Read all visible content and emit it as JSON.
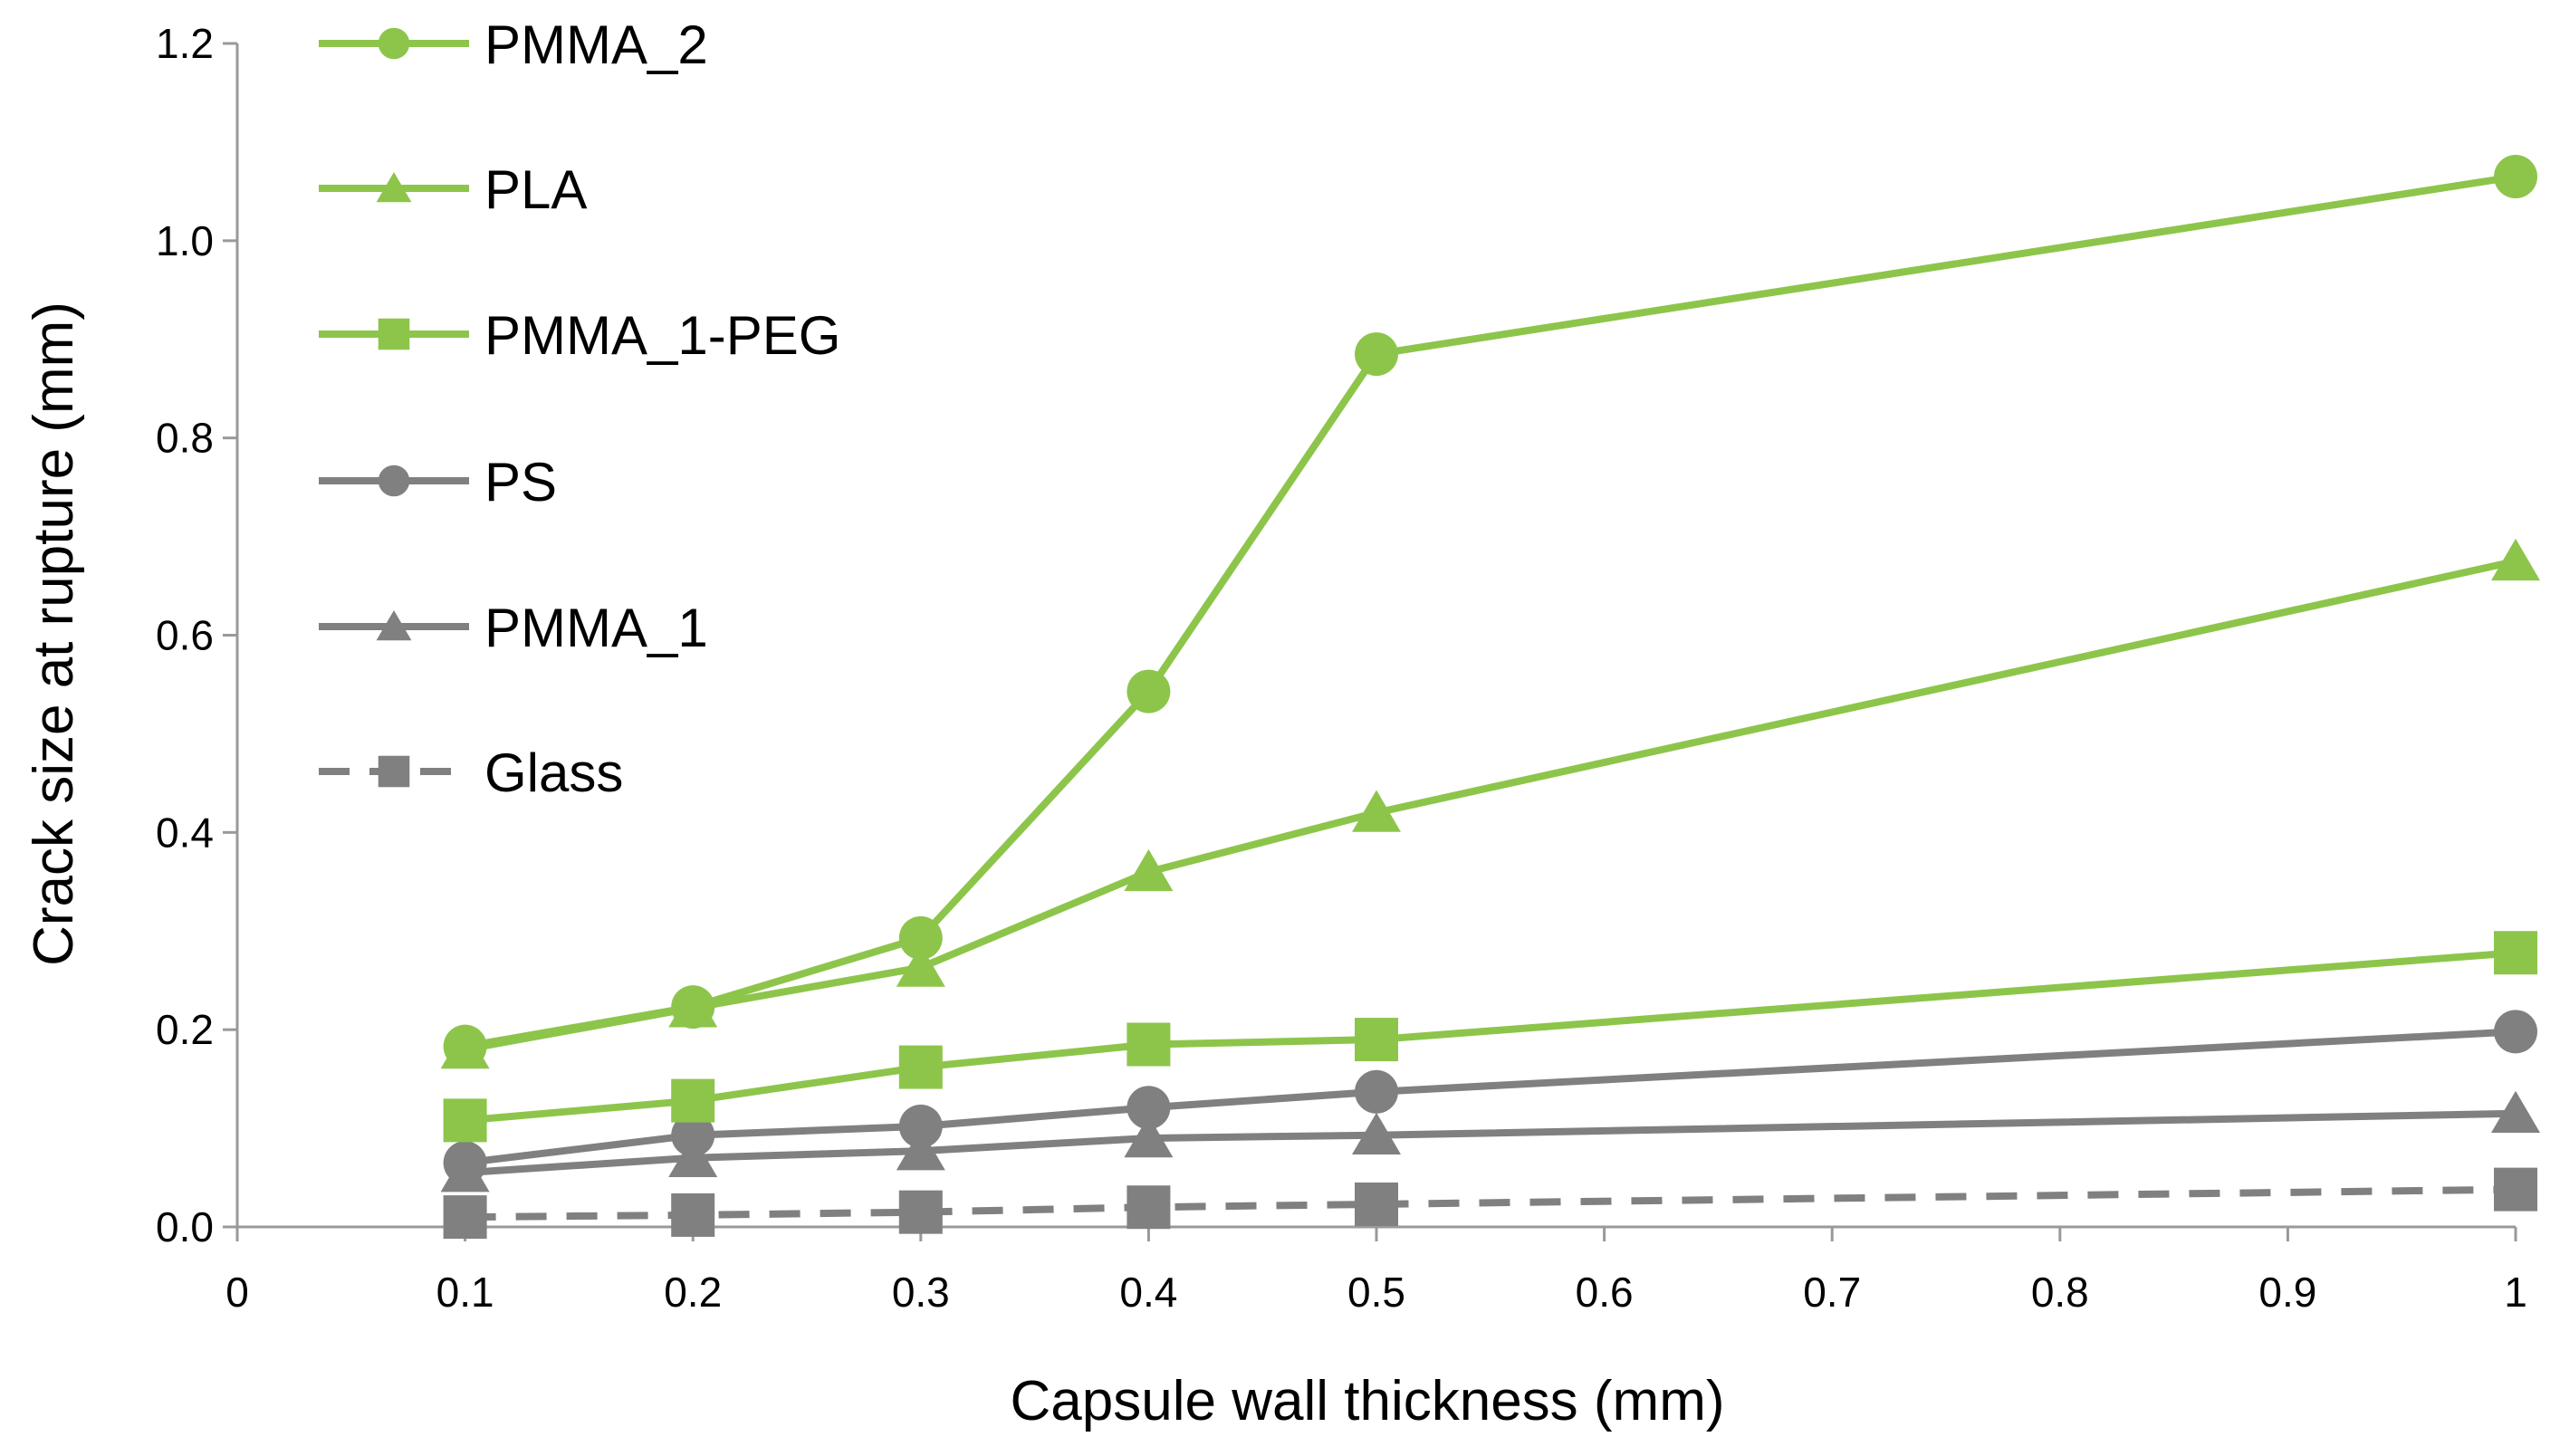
{
  "chart_data": {
    "type": "line",
    "title": "",
    "xlabel": "Capsule wall thickness (mm)",
    "ylabel": "Crack size at rupture (mm)",
    "xlim": [
      0,
      1
    ],
    "ylim": [
      0,
      1.2
    ],
    "xticks": [
      0,
      0.1,
      0.2,
      0.3,
      0.4,
      0.5,
      0.6,
      0.7,
      0.8,
      0.9,
      1
    ],
    "xtick_labels": [
      "0",
      "0.1",
      "0.2",
      "0.3",
      "0.4",
      "0.5",
      "0.6",
      "0.7",
      "0.8",
      "0.9",
      "1"
    ],
    "yticks": [
      0,
      0.2,
      0.4,
      0.6,
      0.8,
      1.0,
      1.2
    ],
    "ytick_labels": [
      "0.0",
      "0.2",
      "0.4",
      "0.6",
      "0.8",
      "1.0",
      "1.2"
    ],
    "legend_position": "top-left",
    "x": [
      0.1,
      0.2,
      0.3,
      0.4,
      0.5,
      1
    ],
    "series": [
      {
        "name": "PMMA_2",
        "color": "#8dc54b",
        "marker": "circle",
        "dashed": false,
        "values": [
          0.183,
          0.223,
          0.293,
          0.543,
          0.885,
          1.065
        ]
      },
      {
        "name": "PLA",
        "color": "#8dc54b",
        "marker": "triangle",
        "dashed": false,
        "values": [
          0.18,
          0.222,
          0.263,
          0.36,
          0.42,
          0.675
        ]
      },
      {
        "name": "PMMA_1-PEG",
        "color": "#8dc54b",
        "marker": "square",
        "dashed": false,
        "values": [
          0.108,
          0.128,
          0.162,
          0.185,
          0.19,
          0.278
        ]
      },
      {
        "name": "PS",
        "color": "#808080",
        "marker": "circle",
        "dashed": false,
        "values": [
          0.065,
          0.093,
          0.102,
          0.121,
          0.137,
          0.198
        ]
      },
      {
        "name": "PMMA_1",
        "color": "#808080",
        "marker": "triangle",
        "dashed": false,
        "values": [
          0.055,
          0.07,
          0.077,
          0.09,
          0.093,
          0.115
        ]
      },
      {
        "name": "Glass",
        "color": "#808080",
        "marker": "square",
        "dashed": true,
        "values": [
          0.01,
          0.012,
          0.015,
          0.02,
          0.023,
          0.038
        ]
      }
    ]
  }
}
